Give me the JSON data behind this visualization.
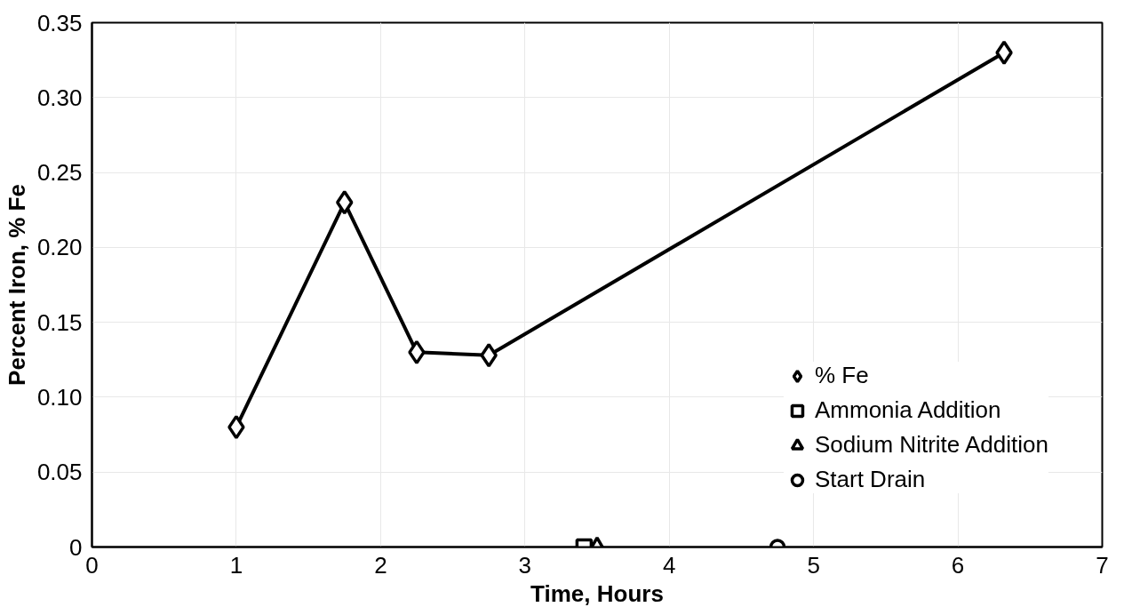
{
  "chart_data": {
    "type": "line",
    "xlabel": "Time, Hours",
    "ylabel": "Percent Iron, % Fe",
    "xlim": [
      0,
      7
    ],
    "xticks": [
      0,
      1,
      2,
      3,
      4,
      5,
      6,
      7
    ],
    "ylim": [
      0,
      0.35
    ],
    "yticks": [
      {
        "value": 0,
        "label": "0"
      },
      {
        "value": 0.05,
        "label": "0.05"
      },
      {
        "value": 0.1,
        "label": "0.10"
      },
      {
        "value": 0.15,
        "label": "0.15"
      },
      {
        "value": 0.2,
        "label": "0.20"
      },
      {
        "value": 0.25,
        "label": "0.25"
      },
      {
        "value": 0.3,
        "label": "0.30"
      },
      {
        "value": 0.35,
        "label": "0.35"
      }
    ],
    "grid": true,
    "legend": "bottom right",
    "line_style": "solid",
    "series": [
      {
        "name": "% Fe",
        "marker": "diamond",
        "color": "#000000",
        "x": [
          1,
          1.75,
          2.25,
          2.75,
          6.32
        ],
        "values": [
          0.08,
          0.23,
          0.13,
          0.128,
          0.33
        ]
      },
      {
        "name": "Ammonia Addition",
        "type": "scatter",
        "marker": "square",
        "color": "#000000",
        "x": [
          3.41
        ],
        "values": [
          0
        ]
      },
      {
        "name": "Sodium Nitrite Addition",
        "type": "scatter",
        "marker": "triangle",
        "color": "#000000",
        "x": [
          3.5
        ],
        "values": [
          0
        ]
      },
      {
        "name": "Start Drain",
        "type": "scatter",
        "marker": "circle",
        "color": "#000000",
        "x": [
          4.75
        ],
        "values": [
          0
        ]
      }
    ]
  }
}
